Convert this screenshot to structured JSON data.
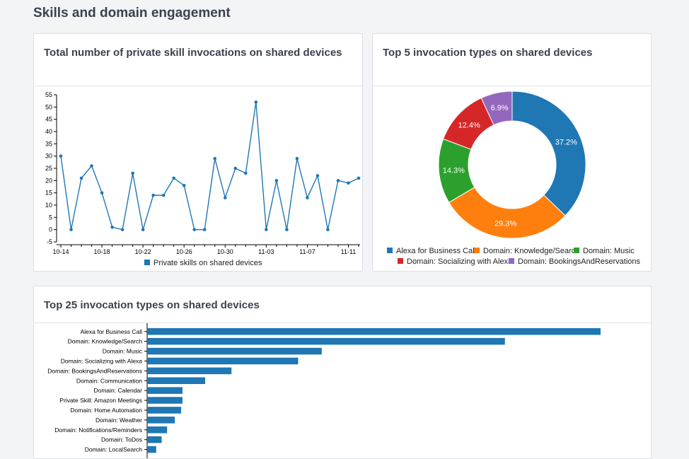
{
  "page": {
    "title": "Skills and domain engagement"
  },
  "cards": {
    "line": {
      "title": "Total number of private skill invocations on shared devices"
    },
    "donut": {
      "title": "Top 5 invocation types on shared devices"
    },
    "bar": {
      "title": "Top 25 invocation types on shared devices"
    }
  },
  "chart_data": [
    {
      "type": "line",
      "title": "Total number of private skill invocations on shared devices",
      "x": [
        "10-14",
        "10-15",
        "10-16",
        "10-17",
        "10-18",
        "10-19",
        "10-20",
        "10-21",
        "10-22",
        "10-23",
        "10-24",
        "10-25",
        "10-26",
        "10-27",
        "10-28",
        "10-29",
        "10-30",
        "10-31",
        "11-01",
        "11-02",
        "11-03",
        "11-04",
        "11-05",
        "11-06",
        "11-07",
        "11-08",
        "11-09",
        "11-10",
        "11-11",
        "11-12"
      ],
      "x_tick_labels": [
        "10-14",
        "10-18",
        "10-22",
        "10-26",
        "10-30",
        "11-03",
        "11-07",
        "11-11"
      ],
      "series": [
        {
          "name": "Private skills on shared devices",
          "values": [
            30,
            0,
            21,
            26,
            15,
            1,
            0,
            23,
            0,
            14,
            14,
            21,
            18,
            0,
            0,
            29,
            13,
            25,
            23,
            52,
            0,
            20,
            0,
            29,
            13,
            22,
            0,
            20,
            19,
            21
          ]
        }
      ],
      "ylim": [
        -5,
        55
      ],
      "y_ticks": [
        -5,
        0,
        5,
        10,
        15,
        20,
        25,
        30,
        35,
        40,
        45,
        50,
        55
      ],
      "color": "#1f77b4",
      "legend_position": "bottom"
    },
    {
      "type": "pie",
      "title": "Top 5 invocation types on shared devices",
      "categories": [
        "Alexa for Business Call",
        "Domain: Knowledge/Search",
        "Domain: Music",
        "Domain: Socializing with Alexa",
        "Domain: BookingsAndReservations"
      ],
      "values": [
        37.2,
        29.3,
        14.3,
        12.4,
        6.9
      ],
      "labels": [
        "37.2%",
        "29.3%",
        "14.3%",
        "12.4%",
        "6.9%"
      ],
      "colors": [
        "#1f77b4",
        "#ff7f0e",
        "#2ca02c",
        "#d62728",
        "#9467bd"
      ],
      "legend_position": "bottom"
    },
    {
      "type": "bar",
      "orientation": "horizontal",
      "title": "Top 25 invocation types on shared devices",
      "categories": [
        "Alexa for Business Call",
        "Domain: Knowledge/Search",
        "Domain: Music",
        "Domain: Socializing with Alexa",
        "Domain: BookingsAndReservations",
        "Domain: Communication",
        "Domain: Calendar",
        "Private Skill: Amazon Meetings",
        "Domain: Home Automation",
        "Domain: Weather",
        "Domain: Notifications/Reminders",
        "Domain: ToDos",
        "Domain: LocalSearch"
      ],
      "values": [
        100,
        78.9,
        38.5,
        33.3,
        18.6,
        12.8,
        7.8,
        7.8,
        7.5,
        6.1,
        4.4,
        3.2,
        2.0
      ],
      "color": "#1f77b4"
    }
  ]
}
